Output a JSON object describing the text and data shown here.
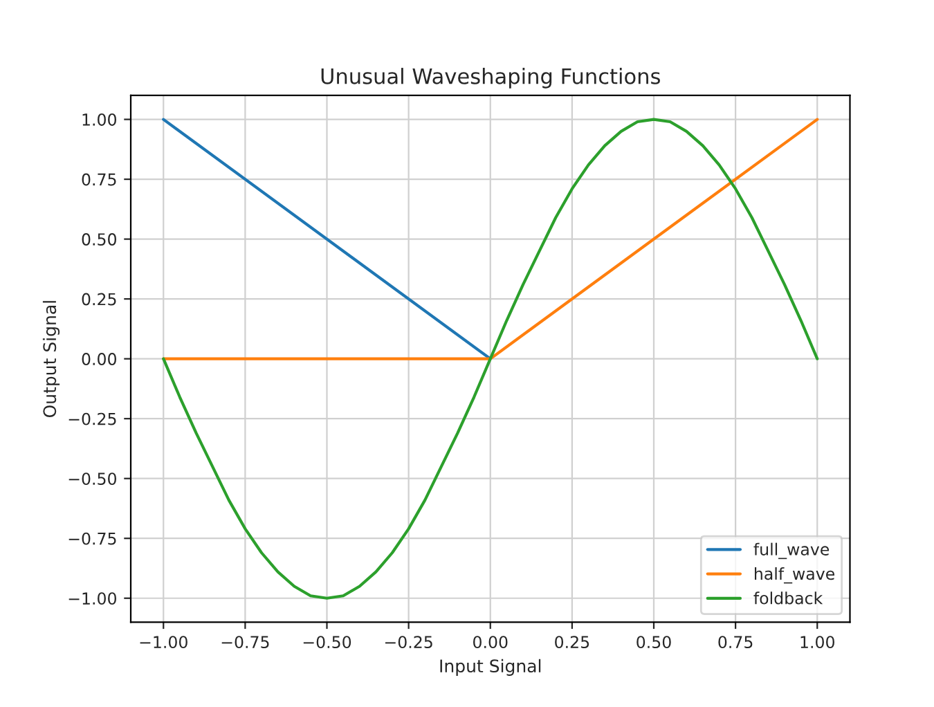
{
  "chart_data": {
    "type": "line",
    "title": "Unusual Waveshaping Functions",
    "xlabel": "Input Signal",
    "ylabel": "Output Signal",
    "series": [
      {
        "name": "full_wave",
        "color": "#1f77b4",
        "x": [
          -1,
          0
        ],
        "values": [
          1,
          0
        ]
      },
      {
        "name": "half_wave",
        "color": "#ff7f0e",
        "x": [
          -1,
          0,
          1
        ],
        "values": [
          0,
          0,
          1
        ]
      },
      {
        "name": "foldback",
        "color": "#2ca02c",
        "x": [
          -1,
          -0.95,
          -0.9,
          -0.85,
          -0.8,
          -0.75,
          -0.7,
          -0.65,
          -0.6,
          -0.55,
          -0.5,
          -0.45,
          -0.4,
          -0.35,
          -0.3,
          -0.25,
          -0.2,
          -0.15,
          -0.1,
          -0.05,
          0,
          0.05,
          0.1,
          0.15,
          0.2,
          0.25,
          0.3,
          0.35,
          0.4,
          0.45,
          0.5,
          0.55,
          0.6,
          0.65,
          0.7,
          0.75,
          0.8,
          0.85,
          0.9,
          0.95,
          1
        ],
        "values": [
          0,
          -0.16,
          -0.31,
          -0.45,
          -0.59,
          -0.71,
          -0.81,
          -0.89,
          -0.95,
          -0.99,
          -1,
          -0.99,
          -0.95,
          -0.89,
          -0.81,
          -0.71,
          -0.59,
          -0.45,
          -0.31,
          -0.16,
          0,
          0.16,
          0.31,
          0.45,
          0.59,
          0.71,
          0.81,
          0.89,
          0.95,
          0.99,
          1,
          0.99,
          0.95,
          0.89,
          0.81,
          0.71,
          0.59,
          0.45,
          0.31,
          0.16,
          0
        ]
      }
    ],
    "xlim": [
      -1.1,
      1.1
    ],
    "ylim": [
      -1.1,
      1.1
    ],
    "xticks": [
      {
        "value": -1,
        "label": "−1.00"
      },
      {
        "value": -0.75,
        "label": "−0.75"
      },
      {
        "value": -0.5,
        "label": "−0.50"
      },
      {
        "value": -0.25,
        "label": "−0.25"
      },
      {
        "value": 0,
        "label": "0.00"
      },
      {
        "value": 0.25,
        "label": "0.25"
      },
      {
        "value": 0.5,
        "label": "0.50"
      },
      {
        "value": 0.75,
        "label": "0.75"
      },
      {
        "value": 1,
        "label": "1.00"
      }
    ],
    "yticks": [
      {
        "value": -1,
        "label": "−1.00"
      },
      {
        "value": -0.75,
        "label": "−0.75"
      },
      {
        "value": -0.5,
        "label": "−0.50"
      },
      {
        "value": -0.25,
        "label": "−0.25"
      },
      {
        "value": 0,
        "label": "0.00"
      },
      {
        "value": 0.25,
        "label": "0.25"
      },
      {
        "value": 0.5,
        "label": "0.50"
      },
      {
        "value": 0.75,
        "label": "0.75"
      },
      {
        "value": 1,
        "label": "1.00"
      }
    ],
    "grid": true,
    "legend": "lower right",
    "line_style": "solid",
    "marker": "none"
  }
}
